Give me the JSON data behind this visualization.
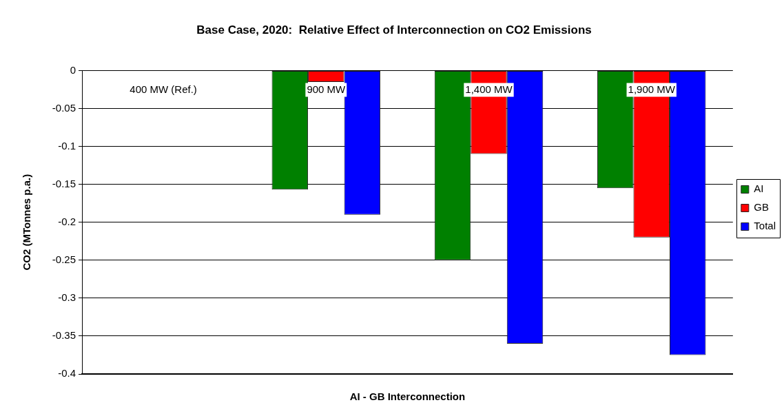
{
  "chart_data": {
    "type": "bar",
    "title": "Base Case, 2020:  Relative Effect of Interconnection on CO2 Emissions",
    "xlabel": "AI - GB Interconnection",
    "ylabel": "CO2 (MTonnes p.a.)",
    "categories": [
      "400 MW (Ref.)",
      "900 MW",
      "1,400 MW",
      "1,900 MW"
    ],
    "series": [
      {
        "name": "AI",
        "color": "#008000",
        "values": [
          0,
          -0.157,
          -0.25,
          -0.155
        ]
      },
      {
        "name": "GB",
        "color": "#ff0000",
        "values": [
          0,
          -0.015,
          -0.11,
          -0.22
        ]
      },
      {
        "name": "Total",
        "color": "#0000ff",
        "values": [
          0,
          -0.19,
          -0.36,
          -0.375
        ]
      }
    ],
    "ylim": [
      -0.4,
      0
    ],
    "yticks": [
      -0.4,
      -0.35,
      -0.3,
      -0.25,
      -0.2,
      -0.15,
      -0.1,
      -0.05,
      0
    ],
    "grid": "y",
    "legend": "right"
  }
}
